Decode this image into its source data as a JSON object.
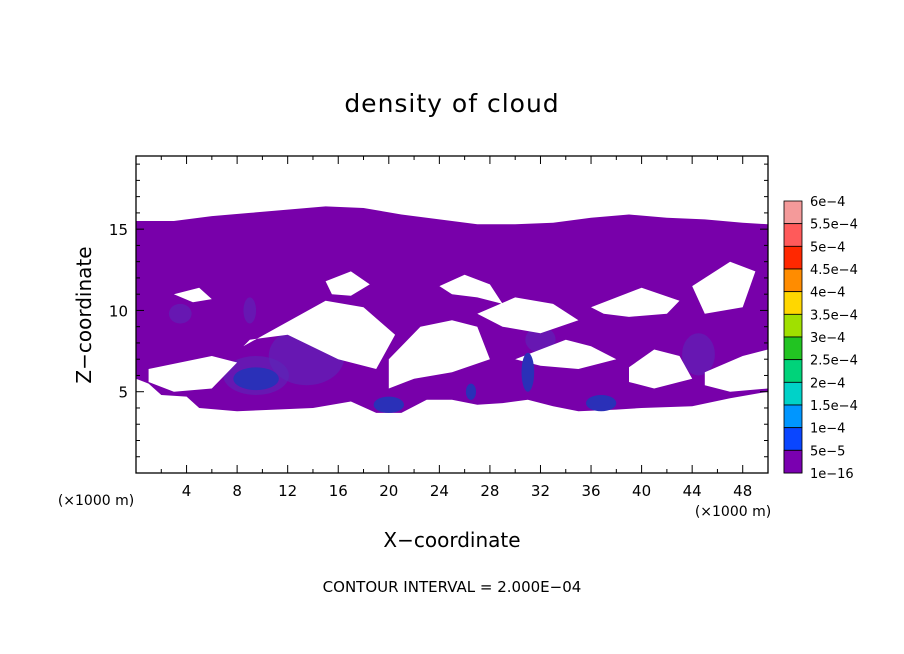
{
  "chart_data": {
    "type": "heatmap",
    "title": "density of cloud",
    "xlabel": "X−coordinate",
    "ylabel": "Z−coordinate",
    "x_unit": "(×1000 m)",
    "y_unit": "(×1000 m)",
    "xlim": [
      0,
      50
    ],
    "ylim": [
      0,
      19.5
    ],
    "x_ticks": [
      4,
      8,
      12,
      16,
      20,
      24,
      28,
      32,
      36,
      40,
      44,
      48
    ],
    "y_ticks": [
      5,
      10,
      15
    ],
    "footer": "CONTOUR INTERVAL = 2.000E−04",
    "colorbar": {
      "levels": [
        {
          "label": "6e−4",
          "color": "#f49a9a"
        },
        {
          "label": "5.5e−4",
          "color": "#ff5a5a"
        },
        {
          "label": "5e−4",
          "color": "#ff2800"
        },
        {
          "label": "4.5e−4",
          "color": "#ff8c00"
        },
        {
          "label": "4e−4",
          "color": "#ffd700"
        },
        {
          "label": "3.5e−4",
          "color": "#a0e000"
        },
        {
          "label": "3e−4",
          "color": "#22c422"
        },
        {
          "label": "2.5e−4",
          "color": "#00d37a"
        },
        {
          "label": "2e−4",
          "color": "#00d2c8"
        },
        {
          "label": "1.5e−4",
          "color": "#0096ff"
        },
        {
          "label": "1e−4",
          "color": "#0a46ff"
        },
        {
          "label": "5e−5",
          "color": "#1414b4"
        },
        {
          "label": "1e−16",
          "color": "#7a00b0"
        }
      ]
    },
    "cloud_region": {
      "base_color": "#7800aa",
      "core_color": "#2a30b8",
      "inner_color": "#5a2ab8",
      "base_z": 4.5,
      "top_z": 15.5,
      "top_profile": [
        [
          0,
          15.5
        ],
        [
          3,
          15.5
        ],
        [
          6,
          15.8
        ],
        [
          9,
          16.0
        ],
        [
          12,
          16.2
        ],
        [
          15,
          16.4
        ],
        [
          18,
          16.3
        ],
        [
          21,
          15.9
        ],
        [
          24,
          15.6
        ],
        [
          27,
          15.3
        ],
        [
          30,
          15.3
        ],
        [
          33,
          15.4
        ],
        [
          36,
          15.7
        ],
        [
          39,
          15.9
        ],
        [
          42,
          15.7
        ],
        [
          45,
          15.6
        ],
        [
          48,
          15.4
        ],
        [
          50,
          15.3
        ]
      ],
      "bottom_profile": [
        [
          0,
          5.8
        ],
        [
          1,
          5.5
        ],
        [
          2,
          4.8
        ],
        [
          4,
          4.7
        ],
        [
          5,
          4.0
        ],
        [
          8,
          3.8
        ],
        [
          11,
          3.9
        ],
        [
          14,
          4.0
        ],
        [
          17,
          4.4
        ],
        [
          19,
          3.7
        ],
        [
          21,
          3.7
        ],
        [
          23,
          4.5
        ],
        [
          25,
          4.5
        ],
        [
          27,
          4.2
        ],
        [
          29,
          4.3
        ],
        [
          31,
          4.5
        ],
        [
          33,
          4.1
        ],
        [
          35,
          3.8
        ],
        [
          38,
          3.9
        ],
        [
          40,
          4.0
        ],
        [
          44,
          4.1
        ],
        [
          47,
          4.6
        ],
        [
          50,
          5.0
        ]
      ],
      "clear_gaps": [
        {
          "x": [
            8.5,
            15,
            18,
            20.5,
            19,
            16,
            12,
            9
          ],
          "z": [
            7.8,
            10.6,
            10.2,
            8.5,
            6.4,
            7.0,
            8.5,
            8.2
          ]
        },
        {
          "x": [
            1,
            6,
            8,
            6,
            3,
            1
          ],
          "z": [
            6.4,
            7.2,
            6.8,
            5.2,
            5.0,
            5.6
          ]
        },
        {
          "x": [
            20,
            22.5,
            25,
            27,
            28,
            25,
            22,
            20
          ],
          "z": [
            7.0,
            9.0,
            9.4,
            9.0,
            7.0,
            6.2,
            5.8,
            5.2
          ]
        },
        {
          "x": [
            24,
            26,
            28,
            29,
            27,
            25
          ],
          "z": [
            11.5,
            12.2,
            11.6,
            10.4,
            10.8,
            11.0
          ]
        },
        {
          "x": [
            27,
            30,
            33,
            35,
            32,
            29
          ],
          "z": [
            9.8,
            10.8,
            10.4,
            9.4,
            8.6,
            9.0
          ]
        },
        {
          "x": [
            30,
            34,
            36,
            38,
            35,
            32
          ],
          "z": [
            7.0,
            8.2,
            7.8,
            7.0,
            6.4,
            6.6
          ]
        },
        {
          "x": [
            36,
            40,
            43,
            42,
            39,
            37
          ],
          "z": [
            10.2,
            11.4,
            10.6,
            9.8,
            9.6,
            9.8
          ]
        },
        {
          "x": [
            39,
            41,
            43,
            44,
            41,
            39
          ],
          "z": [
            6.5,
            7.6,
            7.2,
            5.8,
            5.2,
            5.6
          ]
        },
        {
          "x": [
            44,
            47,
            49,
            48,
            45
          ],
          "z": [
            11.5,
            13.0,
            12.4,
            10.2,
            9.8
          ]
        },
        {
          "x": [
            45,
            48,
            50,
            50,
            47,
            45
          ],
          "z": [
            6.2,
            7.2,
            7.6,
            5.2,
            5.0,
            5.4
          ]
        },
        {
          "x": [
            15,
            17,
            18.5,
            17,
            15.5
          ],
          "z": [
            11.8,
            12.4,
            11.6,
            10.9,
            11.0
          ]
        },
        {
          "x": [
            3,
            5,
            6,
            4.5
          ],
          "z": [
            11.0,
            11.4,
            10.7,
            10.5
          ]
        }
      ],
      "cores": [
        {
          "x": 9.5,
          "z": 5.8,
          "rx": 1.8,
          "rz": 0.7
        },
        {
          "x": 20.0,
          "z": 4.2,
          "rx": 1.2,
          "rz": 0.5
        },
        {
          "x": 31.0,
          "z": 6.2,
          "rx": 0.5,
          "rz": 1.2
        },
        {
          "x": 36.8,
          "z": 4.3,
          "rx": 1.2,
          "rz": 0.5
        },
        {
          "x": 26.5,
          "z": 5.0,
          "rx": 0.4,
          "rz": 0.5
        }
      ],
      "inner": [
        {
          "x": 13.5,
          "z": 7.2,
          "rx": 3.0,
          "rz": 1.8
        },
        {
          "x": 16.2,
          "z": 8.0,
          "rx": 1.2,
          "rz": 1.0
        },
        {
          "x": 9.5,
          "z": 6.0,
          "rx": 2.6,
          "rz": 1.2
        },
        {
          "x": 44.5,
          "z": 7.3,
          "rx": 1.3,
          "rz": 1.3
        },
        {
          "x": 3.5,
          "z": 9.8,
          "rx": 0.9,
          "rz": 0.6
        },
        {
          "x": 9.0,
          "z": 10.0,
          "rx": 0.5,
          "rz": 0.8
        },
        {
          "x": 32.0,
          "z": 8.2,
          "rx": 1.2,
          "rz": 0.8
        }
      ]
    }
  }
}
